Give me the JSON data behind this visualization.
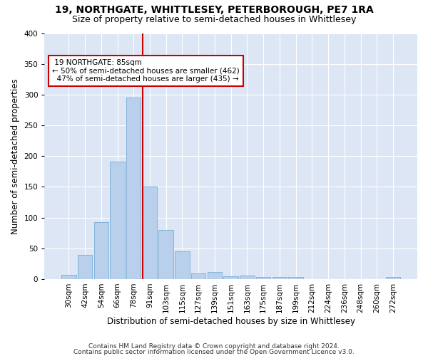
{
  "title": "19, NORTHGATE, WHITTLESEY, PETERBOROUGH, PE7 1RA",
  "subtitle": "Size of property relative to semi-detached houses in Whittlesey",
  "xlabel": "Distribution of semi-detached houses by size in Whittlesey",
  "ylabel": "Number of semi-detached properties",
  "categories": [
    "30sqm",
    "42sqm",
    "54sqm",
    "66sqm",
    "78sqm",
    "91sqm",
    "103sqm",
    "115sqm",
    "127sqm",
    "139sqm",
    "151sqm",
    "163sqm",
    "175sqm",
    "187sqm",
    "199sqm",
    "212sqm",
    "224sqm",
    "236sqm",
    "248sqm",
    "260sqm",
    "272sqm"
  ],
  "values": [
    7,
    39,
    93,
    191,
    295,
    151,
    80,
    45,
    9,
    11,
    5,
    6,
    4,
    4,
    3,
    0,
    0,
    0,
    0,
    0,
    3
  ],
  "bar_color": "#b8d0eb",
  "bar_edgecolor": "#7aadd4",
  "background_color": "#dce6f5",
  "gridcolor": "#ffffff",
  "property_label": "19 NORTHGATE: 85sqm",
  "pct_smaller": 50,
  "n_smaller": 462,
  "pct_larger": 47,
  "n_larger": 435,
  "vline_color": "#cc0000",
  "annotation_box_edgecolor": "#cc0000",
  "ylim": [
    0,
    400
  ],
  "yticks": [
    0,
    50,
    100,
    150,
    200,
    250,
    300,
    350,
    400
  ],
  "footer_line1": "Contains HM Land Registry data © Crown copyright and database right 2024.",
  "footer_line2": "Contains public sector information licensed under the Open Government Licence v3.0.",
  "title_fontsize": 10,
  "subtitle_fontsize": 9,
  "xlabel_fontsize": 8.5,
  "ylabel_fontsize": 8.5,
  "tick_fontsize": 7.5,
  "footer_fontsize": 6.5,
  "annot_fontsize": 7.5
}
